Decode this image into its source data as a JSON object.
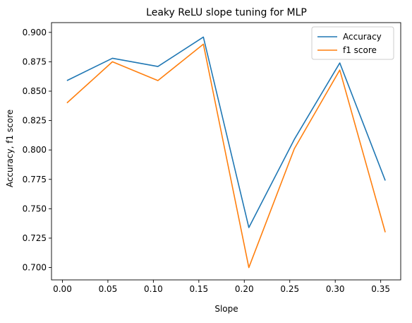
{
  "chart_data": {
    "type": "line",
    "title": "Leaky ReLU slope tuning for MLP",
    "xlabel": "Slope",
    "ylabel": "Accuracy, f1 score",
    "xlim": [
      -0.012,
      0.372
    ],
    "ylim": [
      0.6895,
      0.9083
    ],
    "x": [
      0.005,
      0.055,
      0.105,
      0.155,
      0.205,
      0.255,
      0.305,
      0.355
    ],
    "x_ticks": [
      0.0,
      0.05,
      0.1,
      0.15,
      0.2,
      0.25,
      0.3,
      0.35
    ],
    "x_tick_labels": [
      "0.00",
      "0.05",
      "0.10",
      "0.15",
      "0.20",
      "0.25",
      "0.30",
      "0.35"
    ],
    "y_ticks": [
      0.7,
      0.725,
      0.75,
      0.775,
      0.8,
      0.825,
      0.85,
      0.875,
      0.9
    ],
    "y_tick_labels": [
      "0.700",
      "0.725",
      "0.750",
      "0.775",
      "0.800",
      "0.825",
      "0.850",
      "0.875",
      "0.900"
    ],
    "series": [
      {
        "name": "Accuracy",
        "color": "#1f77b4",
        "values": [
          0.859,
          0.878,
          0.871,
          0.896,
          0.734,
          0.809,
          0.874,
          0.774
        ]
      },
      {
        "name": "f1 score",
        "color": "#ff7f0e",
        "values": [
          0.84,
          0.875,
          0.859,
          0.89,
          0.7,
          0.801,
          0.868,
          0.73
        ]
      }
    ],
    "legend": "top-right",
    "grid": false
  }
}
